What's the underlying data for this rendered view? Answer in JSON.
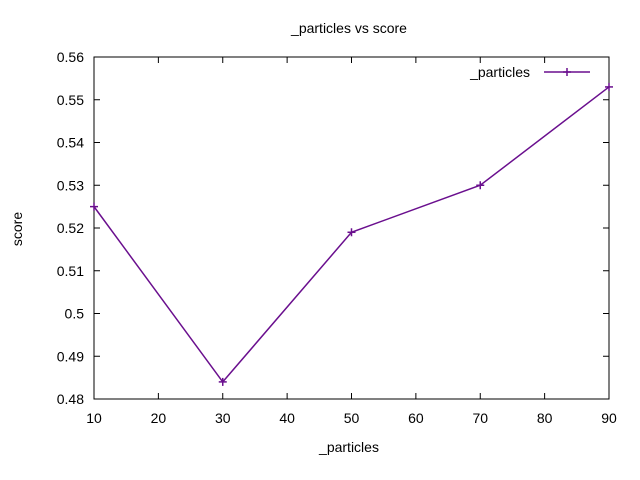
{
  "chart_data": {
    "type": "line",
    "title": "_particles vs score",
    "xlabel": "_particles",
    "ylabel": "score",
    "xlim": [
      10,
      90
    ],
    "ylim": [
      0.48,
      0.56
    ],
    "xticks": [
      10,
      20,
      30,
      40,
      50,
      60,
      70,
      80,
      90
    ],
    "yticks": [
      0.48,
      0.49,
      0.5,
      0.51,
      0.52,
      0.53,
      0.54,
      0.55,
      0.56
    ],
    "xtick_labels": [
      "10",
      "20",
      "30",
      "40",
      "50",
      "60",
      "70",
      "80",
      "90"
    ],
    "ytick_labels": [
      "0.48",
      "0.49",
      "0.5",
      "0.51",
      "0.52",
      "0.53",
      "0.54",
      "0.55",
      "0.56"
    ],
    "grid": false,
    "legend_position": "top-right",
    "series": [
      {
        "name": "_particles",
        "color": "#6a0f8e",
        "marker": "plus",
        "x": [
          10,
          30,
          50,
          70,
          90
        ],
        "y": [
          0.525,
          0.484,
          0.519,
          0.53,
          0.553
        ]
      }
    ]
  }
}
